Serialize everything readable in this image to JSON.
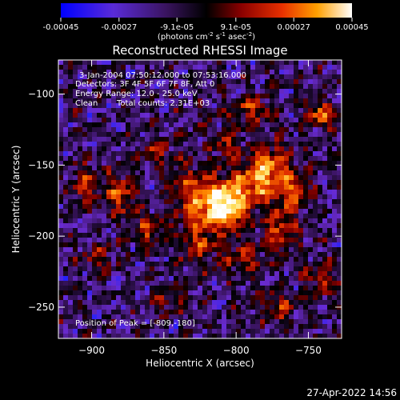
{
  "colorbar": {
    "ticks": [
      "-0.00045",
      "-0.00027",
      "-9.1e-05",
      "9.1e-05",
      "0.00027",
      "0.00045"
    ],
    "tick_values": [
      -0.00045,
      -0.00027,
      -9.1e-05,
      9.1e-05,
      0.00027,
      0.00045
    ],
    "range": [
      -0.00045,
      0.00045
    ],
    "unit_main": "(photons cm",
    "unit_exp1": "-2",
    "unit_mid": " s",
    "unit_exp2": "-1",
    "unit_end": " asec",
    "unit_exp3": "-2",
    "unit_close": ")"
  },
  "chart_data": {
    "type": "heatmap",
    "title": "Reconstructed RHESSI Image",
    "xlabel": "Heliocentric X (arcsec)",
    "ylabel": "Heliocentric Y (arcsec)",
    "xlim": [
      -923,
      -727
    ],
    "ylim": [
      -272,
      -76
    ],
    "x_ticks": [
      -900,
      -850,
      -800,
      -750
    ],
    "x_tick_labels": [
      "−900",
      "−850",
      "−800",
      "−750"
    ],
    "y_ticks": [
      -100,
      -150,
      -200,
      -250
    ],
    "y_tick_labels": [
      "−100",
      "−150",
      "−200",
      "−250"
    ],
    "peak": [
      -809,
      -180
    ],
    "annotations": {
      "line1": "3-Jan-2004 07:50:12.000 to 07:53:16.000",
      "line2": "Detectors: 3F 4F 5F 6F 7F 8F, Att 0",
      "line3": "Energy Range: 12.0 - 25.0 keV",
      "line4_a": "Clean",
      "line4_b": "Total counts: 2.31E+03",
      "peak_label": "Position of Peak = [-809,-180]"
    },
    "colormap": [
      "#2020ff",
      "#6a2bd0",
      "#3a1460",
      "#000000",
      "#8a0000",
      "#e03000",
      "#ff8a00",
      "#ffe060",
      "#ffffff"
    ]
  },
  "footer": {
    "timestamp": "27-Apr-2022 14:56"
  }
}
